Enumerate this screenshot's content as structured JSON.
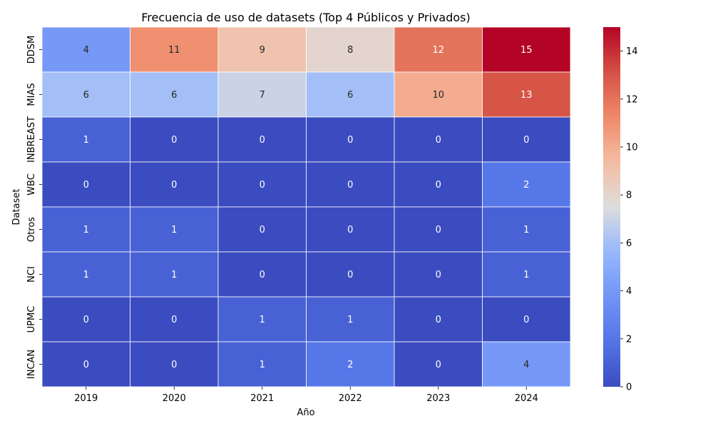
{
  "chart_data": {
    "type": "heatmap",
    "title": "Frecuencia de uso de datasets (Top 4 Públicos y Privados)",
    "xlabel": "Año",
    "ylabel": "Dataset",
    "x": [
      "2019",
      "2020",
      "2021",
      "2022",
      "2023",
      "2024"
    ],
    "y": [
      "DDSM",
      "MIAS",
      "INBREAST",
      "WBC",
      "Otros",
      "NCI",
      "UPMC",
      "INCAN"
    ],
    "values": [
      [
        4,
        11,
        9,
        8,
        12,
        15
      ],
      [
        6,
        6,
        7,
        6,
        10,
        13
      ],
      [
        1,
        0,
        0,
        0,
        0,
        0
      ],
      [
        0,
        0,
        0,
        0,
        0,
        2
      ],
      [
        1,
        1,
        0,
        0,
        0,
        1
      ],
      [
        1,
        1,
        0,
        0,
        0,
        1
      ],
      [
        0,
        0,
        1,
        1,
        0,
        0
      ],
      [
        0,
        0,
        1,
        2,
        0,
        4
      ]
    ],
    "colormap": "coolwarm",
    "colorbar": {
      "range": [
        0,
        15
      ],
      "ticks": [
        "0",
        "2",
        "4",
        "6",
        "8",
        "10",
        "12",
        "14"
      ]
    },
    "annotations": true,
    "grid": false,
    "colors": {
      "low": "#3b4cc0",
      "mid": "#dddddd",
      "high": "#b40426"
    }
  }
}
